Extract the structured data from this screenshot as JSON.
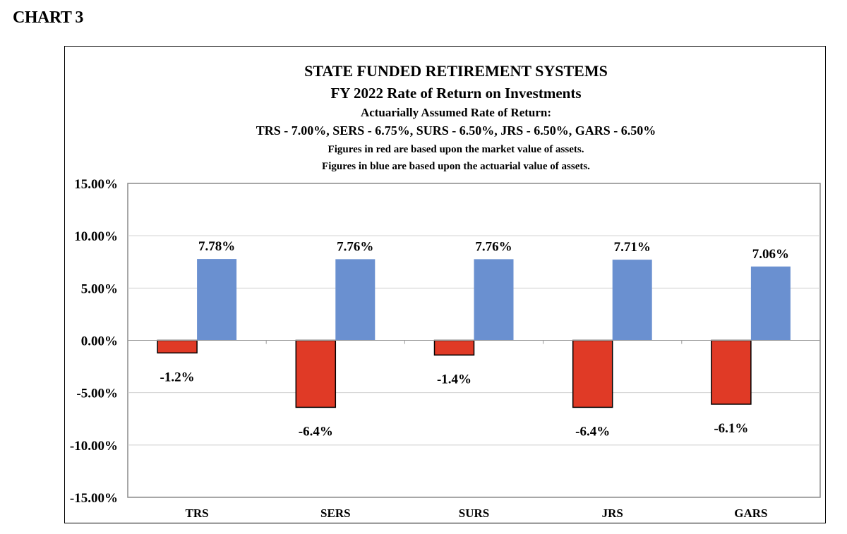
{
  "page_heading": "CHART 3",
  "chart_data": {
    "type": "bar",
    "title": "STATE FUNDED RETIREMENT SYSTEMS",
    "subtitle": "FY 2022 Rate of Return on Investments",
    "notes": [
      "Actuarially Assumed Rate of Return:",
      "TRS - 7.00%, SERS - 6.75%, SURS - 6.50%, JRS - 6.50%, GARS - 6.50%",
      "Figures in red are based upon the market value of assets.",
      "Figures in blue are based upon the actuarial value of assets."
    ],
    "categories": [
      "TRS",
      "SERS",
      "SURS",
      "JRS",
      "GARS"
    ],
    "series": [
      {
        "values": [
          -1.2,
          -6.4,
          -1.4,
          -6.4,
          -6.1
        ],
        "labels": [
          "-1.2%",
          "-6.4%",
          "-1.4%",
          "-6.4%",
          "-6.1%"
        ],
        "color": "#e03a26"
      },
      {
        "values": [
          7.78,
          7.76,
          7.76,
          7.71,
          7.06
        ],
        "labels": [
          "7.78%",
          "7.76%",
          "7.76%",
          "7.71%",
          "7.06%"
        ],
        "color": "#6a90d0"
      }
    ],
    "ylim": [
      -15,
      15
    ],
    "yticks": [
      15,
      10,
      5,
      0,
      -5,
      -10,
      -15
    ],
    "ytick_labels": [
      "15.00%",
      "10.00%",
      "5.00%",
      "0.00%",
      "-5.00%",
      "-10.00%",
      "-15.00%"
    ],
    "grid": true,
    "legend": "none"
  }
}
